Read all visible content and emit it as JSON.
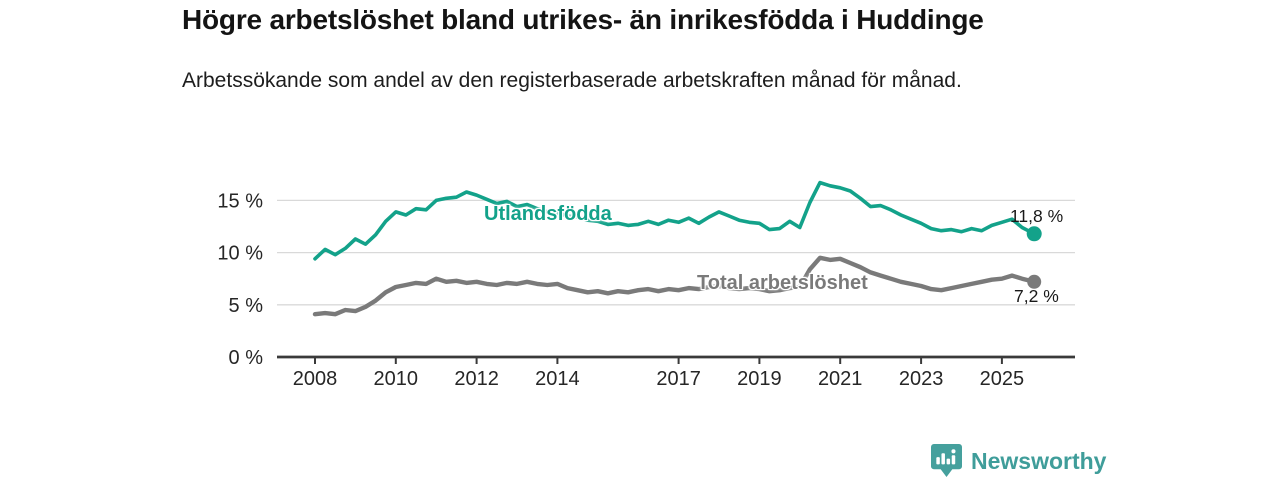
{
  "header": {
    "title": "Högre arbetslöshet bland utrikes- än inrikesfödda i Huddinge",
    "subtitle": "Arbetssökande som andel av den registerbaserade arbetskraften månad för månad."
  },
  "chart_data": {
    "type": "line",
    "title": "Högre arbetslöshet bland utrikes- än inrikesfödda i Huddinge",
    "subtitle": "Arbetssökande som andel av den registerbaserade arbetskraften månad för månad.",
    "unit": "%",
    "grid": "horizontal",
    "legend_position": "inline-labels",
    "x_axis": {
      "range": [
        2007.06,
        2026.81
      ],
      "tick_values": [
        2008,
        2010,
        2012,
        2014,
        2017,
        2019,
        2021,
        2023,
        2025
      ],
      "tick_labels": [
        "2008",
        "2010",
        "2012",
        "2014",
        "2017",
        "2019",
        "2021",
        "2023",
        "2025"
      ]
    },
    "y_axis": {
      "range": [
        0,
        18.1
      ],
      "tick_values": [
        0,
        5,
        10,
        15
      ],
      "tick_labels": [
        "0 %",
        "5 %",
        "10 %",
        "15 %"
      ]
    },
    "colors": {
      "utlandsfodda": "#13a28a",
      "total": "#7a7a7a",
      "grid": "#d9d9d9",
      "axis": "#3a3a3a",
      "tick_text": "#262626"
    },
    "series": [
      {
        "name": "Utlandsfödda",
        "label": "Utlandsfödda",
        "end_label": "11,8 %",
        "end_value": 11.8,
        "color": "#13a28a",
        "points": [
          [
            2008.0,
            9.4
          ],
          [
            2008.25,
            10.3
          ],
          [
            2008.5,
            9.8
          ],
          [
            2008.75,
            10.4
          ],
          [
            2009.0,
            11.3
          ],
          [
            2009.25,
            10.8
          ],
          [
            2009.5,
            11.7
          ],
          [
            2009.75,
            13.0
          ],
          [
            2010.0,
            13.9
          ],
          [
            2010.25,
            13.6
          ],
          [
            2010.5,
            14.2
          ],
          [
            2010.75,
            14.1
          ],
          [
            2011.0,
            15.0
          ],
          [
            2011.25,
            15.2
          ],
          [
            2011.5,
            15.3
          ],
          [
            2011.75,
            15.8
          ],
          [
            2012.0,
            15.5
          ],
          [
            2012.25,
            15.1
          ],
          [
            2012.5,
            14.7
          ],
          [
            2012.75,
            14.9
          ],
          [
            2013.0,
            14.4
          ],
          [
            2013.25,
            14.6
          ],
          [
            2013.5,
            14.2
          ],
          [
            2013.75,
            13.9
          ],
          [
            2014.0,
            13.8
          ],
          [
            2014.25,
            13.5
          ],
          [
            2014.5,
            13.4
          ],
          [
            2014.75,
            13.1
          ],
          [
            2015.0,
            13.0
          ],
          [
            2015.25,
            12.7
          ],
          [
            2015.5,
            12.8
          ],
          [
            2015.75,
            12.6
          ],
          [
            2016.0,
            12.7
          ],
          [
            2016.25,
            13.0
          ],
          [
            2016.5,
            12.7
          ],
          [
            2016.75,
            13.1
          ],
          [
            2017.0,
            12.9
          ],
          [
            2017.25,
            13.3
          ],
          [
            2017.5,
            12.8
          ],
          [
            2017.75,
            13.4
          ],
          [
            2018.0,
            13.9
          ],
          [
            2018.25,
            13.5
          ],
          [
            2018.5,
            13.1
          ],
          [
            2018.75,
            12.9
          ],
          [
            2019.0,
            12.8
          ],
          [
            2019.25,
            12.2
          ],
          [
            2019.5,
            12.3
          ],
          [
            2019.75,
            13.0
          ],
          [
            2020.0,
            12.4
          ],
          [
            2020.25,
            14.8
          ],
          [
            2020.5,
            16.7
          ],
          [
            2020.75,
            16.4
          ],
          [
            2021.0,
            16.2
          ],
          [
            2021.25,
            15.9
          ],
          [
            2021.5,
            15.2
          ],
          [
            2021.75,
            14.4
          ],
          [
            2022.0,
            14.5
          ],
          [
            2022.25,
            14.1
          ],
          [
            2022.5,
            13.6
          ],
          [
            2022.75,
            13.2
          ],
          [
            2023.0,
            12.8
          ],
          [
            2023.25,
            12.3
          ],
          [
            2023.5,
            12.1
          ],
          [
            2023.75,
            12.2
          ],
          [
            2024.0,
            12.0
          ],
          [
            2024.25,
            12.3
          ],
          [
            2024.5,
            12.1
          ],
          [
            2024.75,
            12.6
          ],
          [
            2025.0,
            12.9
          ],
          [
            2025.25,
            13.2
          ],
          [
            2025.5,
            12.4
          ],
          [
            2025.8,
            11.8
          ]
        ]
      },
      {
        "name": "Total arbetslöshet",
        "label": "Total arbetslöshet",
        "end_label": "7,2 %",
        "end_value": 7.2,
        "color": "#7a7a7a",
        "points": [
          [
            2008.0,
            4.1
          ],
          [
            2008.25,
            4.2
          ],
          [
            2008.5,
            4.1
          ],
          [
            2008.75,
            4.5
          ],
          [
            2009.0,
            4.4
          ],
          [
            2009.25,
            4.8
          ],
          [
            2009.5,
            5.4
          ],
          [
            2009.75,
            6.2
          ],
          [
            2010.0,
            6.7
          ],
          [
            2010.25,
            6.9
          ],
          [
            2010.5,
            7.1
          ],
          [
            2010.75,
            7.0
          ],
          [
            2011.0,
            7.5
          ],
          [
            2011.25,
            7.2
          ],
          [
            2011.5,
            7.3
          ],
          [
            2011.75,
            7.1
          ],
          [
            2012.0,
            7.2
          ],
          [
            2012.25,
            7.0
          ],
          [
            2012.5,
            6.9
          ],
          [
            2012.75,
            7.1
          ],
          [
            2013.0,
            7.0
          ],
          [
            2013.25,
            7.2
          ],
          [
            2013.5,
            7.0
          ],
          [
            2013.75,
            6.9
          ],
          [
            2014.0,
            7.0
          ],
          [
            2014.25,
            6.6
          ],
          [
            2014.5,
            6.4
          ],
          [
            2014.75,
            6.2
          ],
          [
            2015.0,
            6.3
          ],
          [
            2015.25,
            6.1
          ],
          [
            2015.5,
            6.3
          ],
          [
            2015.75,
            6.2
          ],
          [
            2016.0,
            6.4
          ],
          [
            2016.25,
            6.5
          ],
          [
            2016.5,
            6.3
          ],
          [
            2016.75,
            6.5
          ],
          [
            2017.0,
            6.4
          ],
          [
            2017.25,
            6.6
          ],
          [
            2017.5,
            6.5
          ],
          [
            2017.75,
            6.7
          ],
          [
            2018.0,
            6.8
          ],
          [
            2018.25,
            6.6
          ],
          [
            2018.5,
            6.5
          ],
          [
            2018.75,
            6.6
          ],
          [
            2019.0,
            6.5
          ],
          [
            2019.25,
            6.3
          ],
          [
            2019.5,
            6.4
          ],
          [
            2019.75,
            6.6
          ],
          [
            2020.0,
            6.7
          ],
          [
            2020.25,
            8.4
          ],
          [
            2020.5,
            9.5
          ],
          [
            2020.75,
            9.3
          ],
          [
            2021.0,
            9.4
          ],
          [
            2021.25,
            9.0
          ],
          [
            2021.5,
            8.6
          ],
          [
            2021.75,
            8.1
          ],
          [
            2022.0,
            7.8
          ],
          [
            2022.25,
            7.5
          ],
          [
            2022.5,
            7.2
          ],
          [
            2022.75,
            7.0
          ],
          [
            2023.0,
            6.8
          ],
          [
            2023.25,
            6.5
          ],
          [
            2023.5,
            6.4
          ],
          [
            2023.75,
            6.6
          ],
          [
            2024.0,
            6.8
          ],
          [
            2024.25,
            7.0
          ],
          [
            2024.5,
            7.2
          ],
          [
            2024.75,
            7.4
          ],
          [
            2025.0,
            7.5
          ],
          [
            2025.25,
            7.8
          ],
          [
            2025.5,
            7.5
          ],
          [
            2025.8,
            7.2
          ]
        ]
      }
    ]
  },
  "footer": {
    "brand": "Newsworthy",
    "logo_icon": "bar-chart-speech-bubble-icon",
    "brand_color": "#3f9d9a"
  }
}
